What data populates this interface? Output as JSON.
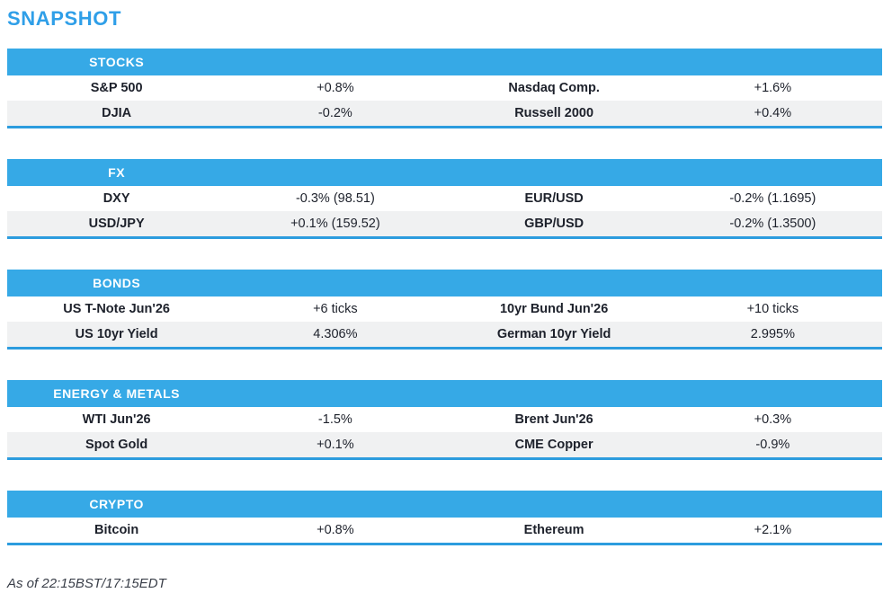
{
  "page": {
    "title": "SNAPSHOT",
    "footer": "As of 22:15BST/17:15EDT"
  },
  "colors": {
    "accent_bar": "#36A9E6",
    "title_blue": "#2F9FE8",
    "section_border": "#2C9CDE",
    "row_alt_bg": "#F0F1F2",
    "text": "#1D212B"
  },
  "sections": [
    {
      "header": "STOCKS",
      "rows": [
        {
          "cells": [
            "S&P 500",
            "+0.8%",
            "Nasdaq Comp.",
            "+1.6%"
          ]
        },
        {
          "cells": [
            "DJIA",
            "-0.2%",
            "Russell 2000",
            "+0.4%"
          ]
        }
      ]
    },
    {
      "header": "FX",
      "rows": [
        {
          "cells": [
            "DXY",
            "-0.3% (98.51)",
            "EUR/USD",
            "-0.2% (1.1695)"
          ]
        },
        {
          "cells": [
            "USD/JPY",
            "+0.1% (159.52)",
            "GBP/USD",
            "-0.2% (1.3500)"
          ]
        }
      ]
    },
    {
      "header": "BONDS",
      "rows": [
        {
          "cells": [
            "US T-Note Jun'26",
            "+6 ticks",
            "10yr Bund Jun'26",
            "+10 ticks"
          ]
        },
        {
          "cells": [
            "US 10yr Yield",
            "4.306%",
            "German 10yr Yield",
            "2.995%"
          ]
        }
      ]
    },
    {
      "header": "ENERGY & METALS",
      "rows": [
        {
          "cells": [
            "WTI Jun'26",
            "-1.5%",
            "Brent Jun'26",
            "+0.3%"
          ]
        },
        {
          "cells": [
            "Spot Gold",
            "+0.1%",
            "CME Copper",
            "-0.9%"
          ]
        }
      ]
    },
    {
      "header": "CRYPTO",
      "rows": [
        {
          "cells": [
            "Bitcoin",
            "+0.8%",
            "Ethereum",
            "+2.1%"
          ]
        }
      ]
    }
  ]
}
